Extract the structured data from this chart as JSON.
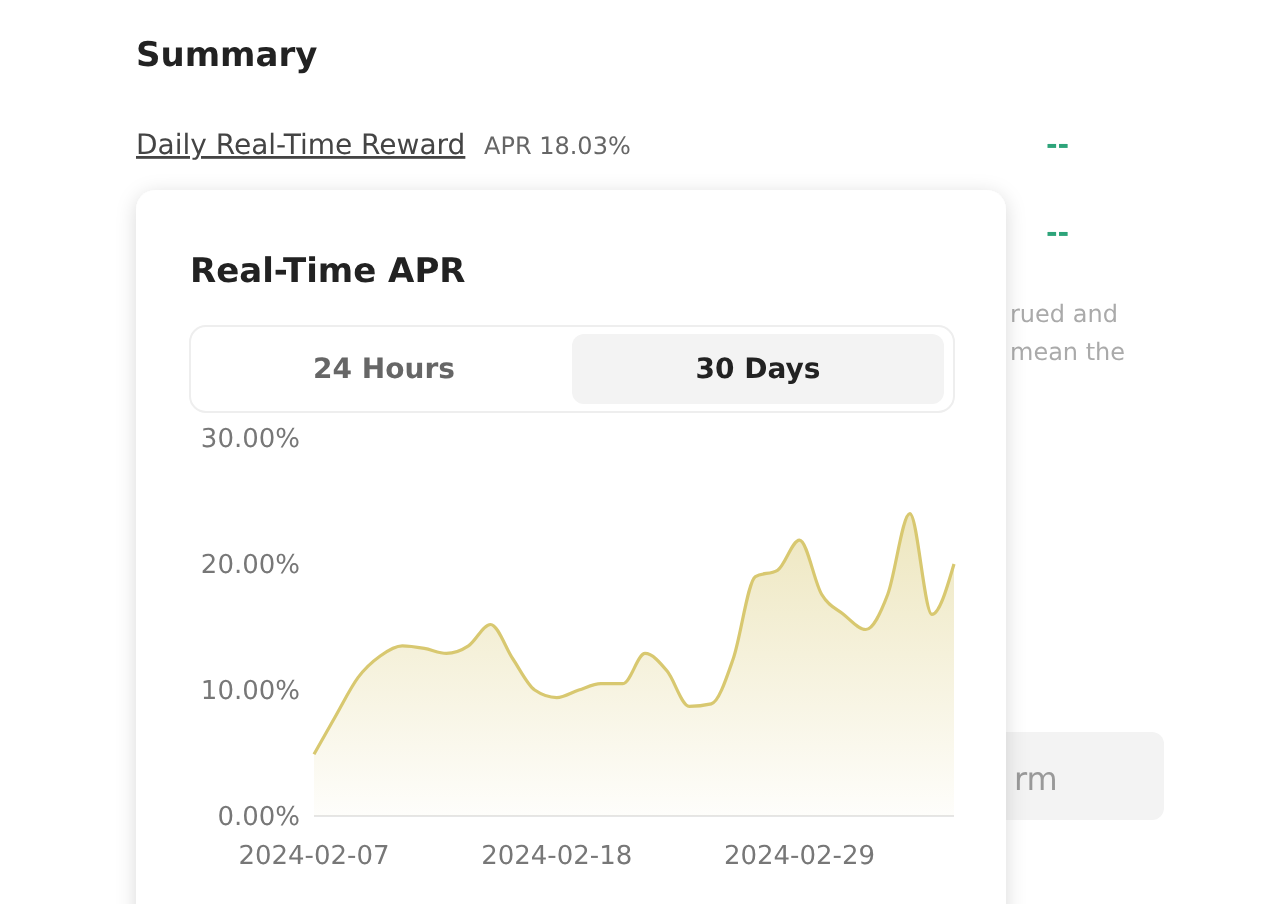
{
  "chart_data": {
    "type": "area",
    "title": "Real-Time APR",
    "x": [
      "2024-02-07",
      "2024-02-08",
      "2024-02-09",
      "2024-02-10",
      "2024-02-11",
      "2024-02-12",
      "2024-02-13",
      "2024-02-14",
      "2024-02-15",
      "2024-02-16",
      "2024-02-17",
      "2024-02-18",
      "2024-02-19",
      "2024-02-20",
      "2024-02-21",
      "2024-02-22",
      "2024-02-23",
      "2024-02-24",
      "2024-02-25",
      "2024-02-26",
      "2024-02-27",
      "2024-02-28",
      "2024-02-29",
      "2024-03-01",
      "2024-03-02",
      "2024-03-03",
      "2024-03-04",
      "2024-03-05",
      "2024-03-06",
      "2024-03-07"
    ],
    "series": [
      {
        "color": "#d8c870",
        "values": [
          4.9,
          8.0,
          11.0,
          12.7,
          13.5,
          13.3,
          12.9,
          13.5,
          15.2,
          12.5,
          10.0,
          9.4,
          10.0,
          10.5,
          10.5,
          12.9,
          11.5,
          8.7,
          8.9,
          12.5,
          19.0,
          19.5,
          21.9,
          17.6,
          16.0,
          14.8,
          17.6,
          24.0,
          16.0,
          20.0
        ]
      }
    ],
    "xlim": [
      "2024-02-07",
      "2024-03-07"
    ],
    "xticks": [
      "2024-02-07",
      "2024-02-18",
      "2024-02-29"
    ],
    "ylim": [
      0,
      30
    ],
    "yticks": [
      {
        "value": 0,
        "label": "0.00%"
      },
      {
        "value": 10,
        "label": "10.00%"
      },
      {
        "value": 20,
        "label": "20.00%"
      },
      {
        "value": 30,
        "label": "30.00%"
      }
    ],
    "grid": false,
    "marker": "none",
    "line_style": "solid",
    "annotations": [
      "Summary",
      "Daily Real-Time Reward",
      "APR 18.03%",
      "--",
      "--",
      "rued and",
      "mean the",
      "24 Hours",
      "30 Days",
      "rm"
    ]
  }
}
